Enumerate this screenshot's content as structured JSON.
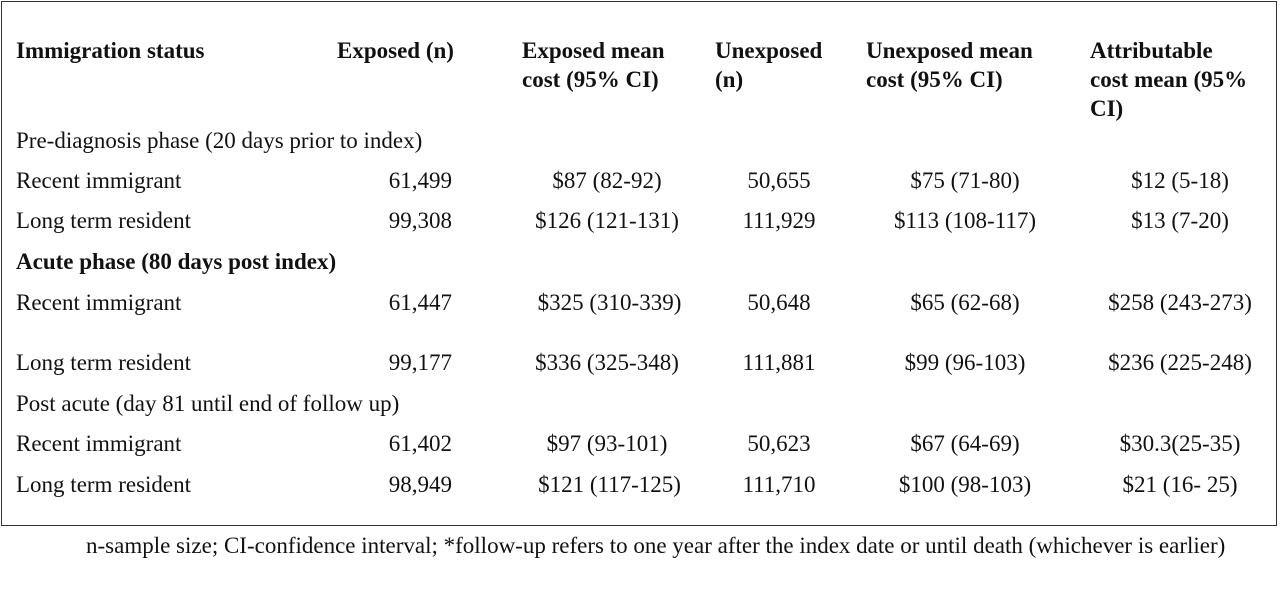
{
  "headers": {
    "immigration_status": "Immigration status",
    "exposed_n": "Exposed (n)",
    "exposed_mean_cost": "Exposed mean cost (95% CI)",
    "unexposed_n": "Unexposed (n)",
    "unexposed_mean_cost": "Unexposed mean cost (95% CI)",
    "attributable_cost_mean": "Attributable cost mean (95% CI)"
  },
  "sections": [
    {
      "title": "Pre-diagnosis phase (20 days prior to index)",
      "bold": false,
      "rows": [
        {
          "status": "Recent immigrant",
          "exposed_n": "61,499",
          "exposed_cost": "$87 (82-92)",
          "unexposed_n": "50,655",
          "unexposed_cost": "$75 (71-80)",
          "attributable": "$12 (5-18)"
        },
        {
          "status": "Long term resident",
          "exposed_n": "99,308",
          "exposed_cost": "$126 (121-131)",
          "unexposed_n": "111,929",
          "unexposed_cost": "$113 (108-117)",
          "attributable": "$13 (7-20)"
        }
      ]
    },
    {
      "title": "Acute phase (80 days post index)",
      "bold": true,
      "rows": [
        {
          "status": "Recent immigrant",
          "exposed_n": "61,447",
          "exposed_cost": "$325 (310-339)",
          "unexposed_n": "50,648",
          "unexposed_cost": "$65 (62-68)",
          "attributable": "$258 (243-273)"
        },
        {
          "status": "Long term resident",
          "exposed_n": "99,177",
          "exposed_cost": "$336 (325-348)",
          "unexposed_n": "111,881",
          "unexposed_cost": "$99 (96-103)",
          "attributable": "$236 (225-248)"
        }
      ]
    },
    {
      "title": "Post acute (day 81 until end of follow up)",
      "bold": false,
      "rows": [
        {
          "status": "Recent immigrant",
          "exposed_n": "61,402",
          "exposed_cost": "$97 (93-101)",
          "unexposed_n": "50,623",
          "unexposed_cost": "$67 (64-69)",
          "attributable": "$30.3(25-35)"
        },
        {
          "status": "Long term resident",
          "exposed_n": "98,949",
          "exposed_cost": "$121 (117-125)",
          "unexposed_n": "111,710",
          "unexposed_cost": "$100 (98-103)",
          "attributable": "$21 (16- 25)"
        }
      ]
    }
  ],
  "footnote": "n-sample size; CI-confidence interval; *follow-up refers to one year after the index date or until death (whichever is earlier)"
}
